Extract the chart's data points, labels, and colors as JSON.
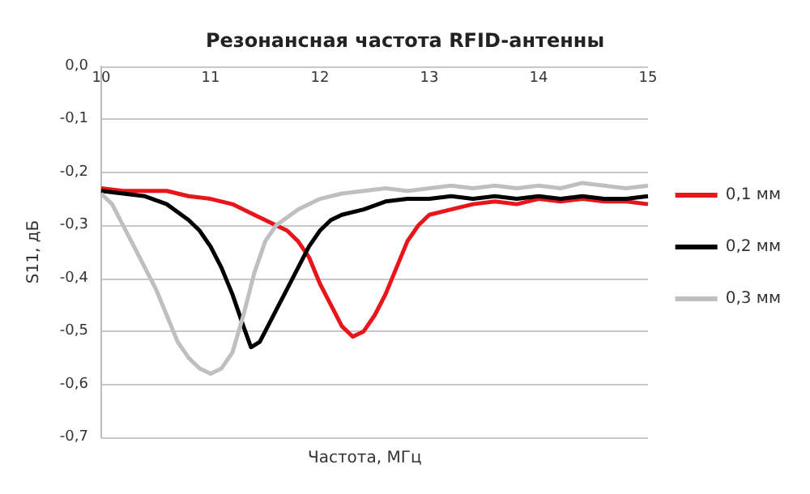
{
  "chart_data": {
    "type": "line",
    "title": "Резонансная частота RFID-антенны",
    "xlabel": "Частота, МГц",
    "ylabel": "S11, дБ",
    "xlim": [
      10,
      15
    ],
    "xticks": [
      10,
      11,
      12,
      13,
      14,
      15
    ],
    "ylim": [
      -0.7,
      0
    ],
    "yticks": [
      {
        "value": -0.7,
        "label": "-0,7"
      },
      {
        "value": -0.6,
        "label": "-0,6"
      },
      {
        "value": -0.5,
        "label": "-0,5"
      },
      {
        "value": -0.4,
        "label": "-0,4"
      },
      {
        "value": -0.3,
        "label": "-0,3"
      },
      {
        "value": -0.2,
        "label": "-0,2"
      },
      {
        "value": -0.1,
        "label": "-0,1"
      },
      {
        "value": 0,
        "label": "0,0"
      }
    ],
    "grid": "y",
    "legend": "right",
    "marker": "none",
    "line_style": "solid",
    "series": [
      {
        "name": "0,1 мм",
        "color": "#e8161b",
        "x": [
          10,
          10.2,
          10.4,
          10.6,
          10.8,
          11,
          11.2,
          11.4,
          11.5,
          11.6,
          11.7,
          11.8,
          11.9,
          12,
          12.05,
          12.1,
          12.2,
          12.3,
          12.4,
          12.5,
          12.6,
          12.7,
          12.8,
          12.9,
          13,
          13.2,
          13.4,
          13.6,
          13.8,
          14,
          14.2,
          14.4,
          14.6,
          14.8,
          15
        ],
        "values": [
          -0.23,
          -0.235,
          -0.235,
          -0.235,
          -0.245,
          -0.25,
          -0.26,
          -0.28,
          -0.29,
          -0.3,
          -0.31,
          -0.33,
          -0.36,
          -0.41,
          -0.43,
          -0.45,
          -0.49,
          -0.51,
          -0.5,
          -0.47,
          -0.43,
          -0.38,
          -0.33,
          -0.3,
          -0.28,
          -0.27,
          -0.26,
          -0.255,
          -0.26,
          -0.25,
          -0.255,
          -0.25,
          -0.255,
          -0.255,
          -0.26
        ]
      },
      {
        "name": "0,2 мм",
        "color": "#000000",
        "x": [
          10,
          10.2,
          10.4,
          10.6,
          10.8,
          10.9,
          11,
          11.1,
          11.2,
          11.3,
          11.37,
          11.45,
          11.5,
          11.6,
          11.7,
          11.8,
          11.9,
          12,
          12.1,
          12.2,
          12.4,
          12.6,
          12.8,
          13,
          13.2,
          13.4,
          13.6,
          13.8,
          14,
          14.2,
          14.4,
          14.6,
          14.8,
          15
        ],
        "values": [
          -0.235,
          -0.24,
          -0.245,
          -0.26,
          -0.29,
          -0.31,
          -0.34,
          -0.38,
          -0.43,
          -0.49,
          -0.53,
          -0.52,
          -0.5,
          -0.46,
          -0.42,
          -0.38,
          -0.34,
          -0.31,
          -0.29,
          -0.28,
          -0.27,
          -0.255,
          -0.25,
          -0.25,
          -0.245,
          -0.25,
          -0.245,
          -0.25,
          -0.245,
          -0.25,
          -0.245,
          -0.25,
          -0.25,
          -0.245
        ]
      },
      {
        "name": "0,3 мм",
        "color": "#bfbfbf",
        "x": [
          10,
          10.1,
          10.2,
          10.3,
          10.4,
          10.5,
          10.6,
          10.7,
          10.8,
          10.9,
          11,
          11.1,
          11.2,
          11.3,
          11.4,
          11.5,
          11.6,
          11.8,
          12,
          12.2,
          12.4,
          12.6,
          12.8,
          13,
          13.2,
          13.4,
          13.6,
          13.8,
          14,
          14.2,
          14.4,
          14.6,
          14.8,
          15
        ],
        "values": [
          -0.24,
          -0.26,
          -0.3,
          -0.34,
          -0.38,
          -0.42,
          -0.47,
          -0.52,
          -0.55,
          -0.57,
          -0.58,
          -0.57,
          -0.54,
          -0.47,
          -0.39,
          -0.33,
          -0.3,
          -0.27,
          -0.25,
          -0.24,
          -0.235,
          -0.23,
          -0.235,
          -0.23,
          -0.225,
          -0.23,
          -0.225,
          -0.23,
          -0.225,
          -0.23,
          -0.22,
          -0.225,
          -0.23,
          -0.225
        ]
      }
    ]
  }
}
